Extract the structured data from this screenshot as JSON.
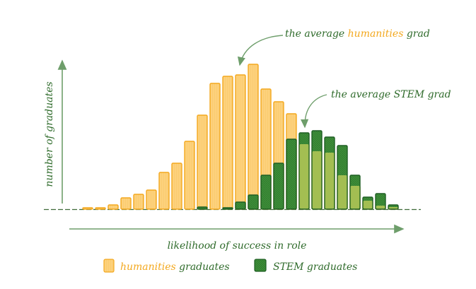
{
  "colors": {
    "humanities_fill": "#FDD17C",
    "humanities_stroke": "#F3A81E",
    "stem_fill": "#3E8E3A",
    "stem_stroke": "#1F5F24",
    "overlap_fill": "#A3BE52",
    "axis": "#6E9E6B",
    "label_green": "#2F6B2B",
    "label_orange": "#F3A81E"
  },
  "annotations": {
    "humanities": {
      "prefix": "the average ",
      "highlight": "humanities",
      "suffix": " grad"
    },
    "stem": {
      "text": "the average STEM grad"
    }
  },
  "chart_data": {
    "type": "bar",
    "title": "",
    "xlabel": "likelihood of success in role",
    "ylabel": "number of graduates",
    "x": [
      1,
      2,
      3,
      4,
      5,
      6,
      7,
      8,
      9,
      10,
      11,
      12,
      13,
      14,
      15,
      16,
      17,
      18,
      19,
      20,
      21,
      22,
      23,
      24,
      25
    ],
    "ylim": [
      0,
      210
    ],
    "series": [
      {
        "name": "humanities graduates",
        "legend_highlight": "humanities",
        "legend_suffix": " graduates",
        "values": [
          2,
          2,
          6,
          16,
          21,
          27,
          52,
          65,
          96,
          133,
          178,
          188,
          190,
          205,
          170,
          152,
          135,
          92,
          82,
          80,
          48,
          33,
          12,
          5,
          3
        ]
      },
      {
        "name": "STEM graduates",
        "values": [
          0,
          0,
          0,
          0,
          0,
          0,
          0,
          0,
          0,
          3,
          0,
          2,
          10,
          20,
          48,
          65,
          99,
          108,
          111,
          102,
          90,
          48,
          17,
          22,
          6
        ]
      }
    ]
  }
}
